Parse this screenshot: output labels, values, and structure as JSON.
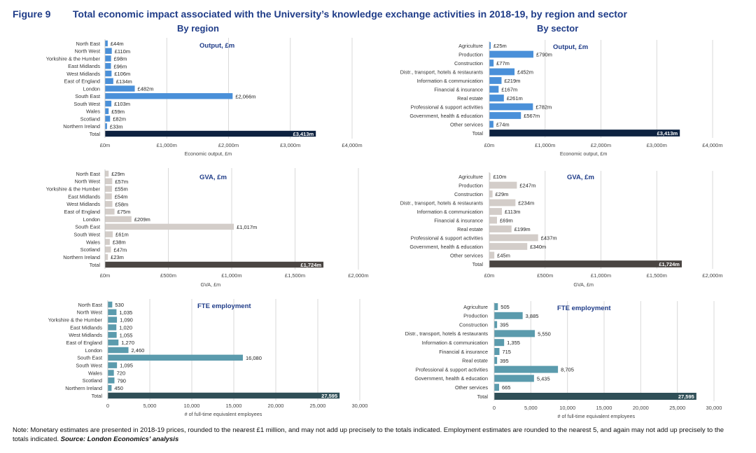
{
  "header": {
    "figure": "Figure 9",
    "title": "Total economic impact associated with the University’s knowledge exchange activities in 2018-19, by region and sector",
    "left_subtitle": "By region",
    "right_subtitle": "By sector"
  },
  "note": {
    "text": "Note: Monetary estimates are presented in 2018-19 prices, rounded to the nearest £1 million, and may not add up precisely to the totals indicated. Employment estimates are rounded to the nearest 5, and again may not add up precisely to the totals indicated.",
    "source": "Source: London Economics’ analysis"
  },
  "colors": {
    "output_bar": "#4a90d9",
    "output_total": "#0d2240",
    "gva_bar": "#d3cdc9",
    "gva_total": "#4a4542",
    "fte_bar": "#5b9bad",
    "fte_total": "#2f4f57",
    "title": "#1f3c88"
  },
  "chart_data": [
    {
      "id": "region-output",
      "type": "bar",
      "orientation": "horizontal",
      "title": "Output, £m",
      "xlabel": "Economic output, £m",
      "xlim": [
        0,
        4000
      ],
      "ticks": [
        0,
        1000,
        2000,
        3000,
        4000
      ],
      "tick_labels": [
        "£0m",
        "£1,000m",
        "£2,000m",
        "£3,000m",
        "£4,000m"
      ],
      "categories": [
        "North East",
        "North West",
        "Yorkshire & the Humber",
        "East Midlands",
        "West Midlands",
        "East of England",
        "London",
        "South East",
        "South West",
        "Wales",
        "Scotland",
        "Northern Ireland",
        "Total"
      ],
      "values": [
        44,
        110,
        98,
        96,
        106,
        134,
        482,
        2066,
        103,
        59,
        82,
        33,
        3413
      ],
      "data_labels": [
        "£44m",
        "£110m",
        "£98m",
        "£96m",
        "£106m",
        "£134m",
        "£482m",
        "£2,066m",
        "£103m",
        "£59m",
        "£82m",
        "£33m",
        "£3,413m"
      ],
      "grid": true
    },
    {
      "id": "sector-output",
      "type": "bar",
      "orientation": "horizontal",
      "title": "Output, £m",
      "xlabel": "Economic output, £m",
      "xlim": [
        0,
        4000
      ],
      "ticks": [
        0,
        1000,
        2000,
        3000,
        4000
      ],
      "tick_labels": [
        "£0m",
        "£1,000m",
        "£2,000m",
        "£3,000m",
        "£4,000m"
      ],
      "categories": [
        "Agriculture",
        "Production",
        "Construction",
        "Distr., transport, hotels & restaurants",
        "Information & communication",
        "Financial & insurance",
        "Real estate",
        "Professional & support activities",
        "Government, health & education",
        "Other services",
        "Total"
      ],
      "values": [
        25,
        790,
        77,
        452,
        219,
        167,
        261,
        782,
        567,
        74,
        3413
      ],
      "data_labels": [
        "£25m",
        "£790m",
        "£77m",
        "£452m",
        "£219m",
        "£167m",
        "£261m",
        "£782m",
        "£567m",
        "£74m",
        "£3,413m"
      ],
      "grid": true
    },
    {
      "id": "region-gva",
      "type": "bar",
      "orientation": "horizontal",
      "title": "GVA, £m",
      "xlabel": "GVA, £m",
      "xlim": [
        0,
        2000
      ],
      "ticks": [
        0,
        500,
        1000,
        1500,
        2000
      ],
      "tick_labels": [
        "£0m",
        "£500m",
        "£1,000m",
        "£1,500m",
        "£2,000m"
      ],
      "categories": [
        "North East",
        "North West",
        "Yorkshire & the Humber",
        "East Midlands",
        "West Midlands",
        "East of England",
        "London",
        "South East",
        "South West",
        "Wales",
        "Scotland",
        "Northern Ireland",
        "Total"
      ],
      "values": [
        29,
        57,
        55,
        54,
        58,
        75,
        209,
        1017,
        61,
        38,
        47,
        23,
        1724
      ],
      "data_labels": [
        "£29m",
        "£57m",
        "£55m",
        "£54m",
        "£58m",
        "£75m",
        "£209m",
        "£1,017m",
        "£61m",
        "£38m",
        "£47m",
        "£23m",
        "£1,724m"
      ],
      "grid": true
    },
    {
      "id": "sector-gva",
      "type": "bar",
      "orientation": "horizontal",
      "title": "GVA, £m",
      "xlabel": "GVA, £m",
      "xlim": [
        0,
        2000
      ],
      "ticks": [
        0,
        500,
        1000,
        1500,
        2000
      ],
      "tick_labels": [
        "£0m",
        "£500m",
        "£1,000m",
        "£1,500m",
        "£2,000m"
      ],
      "categories": [
        "Agriculture",
        "Production",
        "Construction",
        "Distr., transport, hotels & restaurants",
        "Information & communication",
        "Financial & insurance",
        "Real estate",
        "Professional & support activities",
        "Government, health & education",
        "Other services",
        "Total"
      ],
      "values": [
        10,
        247,
        29,
        234,
        113,
        69,
        199,
        437,
        340,
        45,
        1724
      ],
      "data_labels": [
        "£10m",
        "£247m",
        "£29m",
        "£234m",
        "£113m",
        "£69m",
        "£199m",
        "£437m",
        "£340m",
        "£45m",
        "£1,724m"
      ],
      "grid": true
    },
    {
      "id": "region-fte",
      "type": "bar",
      "orientation": "horizontal",
      "title": "FTE employment",
      "xlabel": "# of full-time equivalent employees",
      "xlim": [
        0,
        30000
      ],
      "ticks": [
        0,
        5000,
        10000,
        15000,
        20000,
        25000,
        30000
      ],
      "tick_labels": [
        "0",
        "5,000",
        "10,000",
        "15,000",
        "20,000",
        "25,000",
        "30,000"
      ],
      "categories": [
        "North East",
        "North West",
        "Yorkshire & the Humber",
        "East Midlands",
        "West Midlands",
        "East of England",
        "London",
        "South East",
        "South West",
        "Wales",
        "Scotland",
        "Northern Ireland",
        "Total"
      ],
      "values": [
        530,
        1035,
        1090,
        1020,
        1055,
        1270,
        2460,
        16080,
        1095,
        720,
        790,
        450,
        27595
      ],
      "data_labels": [
        "530",
        "1,035",
        "1,090",
        "1,020",
        "1,055",
        "1,270",
        "2,460",
        "16,080",
        "1,095",
        "720",
        "790",
        "450",
        "27,595"
      ],
      "grid": true
    },
    {
      "id": "sector-fte",
      "type": "bar",
      "orientation": "horizontal",
      "title": "FTE employment",
      "xlabel": "# of full-time equivalent employees",
      "xlim": [
        0,
        30000
      ],
      "ticks": [
        0,
        5000,
        10000,
        15000,
        20000,
        25000,
        30000
      ],
      "tick_labels": [
        "0",
        "5,000",
        "10,000",
        "15,000",
        "20,000",
        "25,000",
        "30,000"
      ],
      "categories": [
        "Agriculture",
        "Production",
        "Construction",
        "Distr., transport, hotels & restaurants",
        "Information & communication",
        "Financial & insurance",
        "Real estate",
        "Professional & support activities",
        "Government, health & education",
        "Other services",
        "Total"
      ],
      "values": [
        505,
        3885,
        395,
        5550,
        1355,
        715,
        395,
        8705,
        5435,
        665,
        27595
      ],
      "data_labels": [
        "505",
        "3,885",
        "395",
        "5,550",
        "1,355",
        "715",
        "395",
        "8,705",
        "5,435",
        "665",
        "27,595"
      ],
      "grid": true
    }
  ]
}
